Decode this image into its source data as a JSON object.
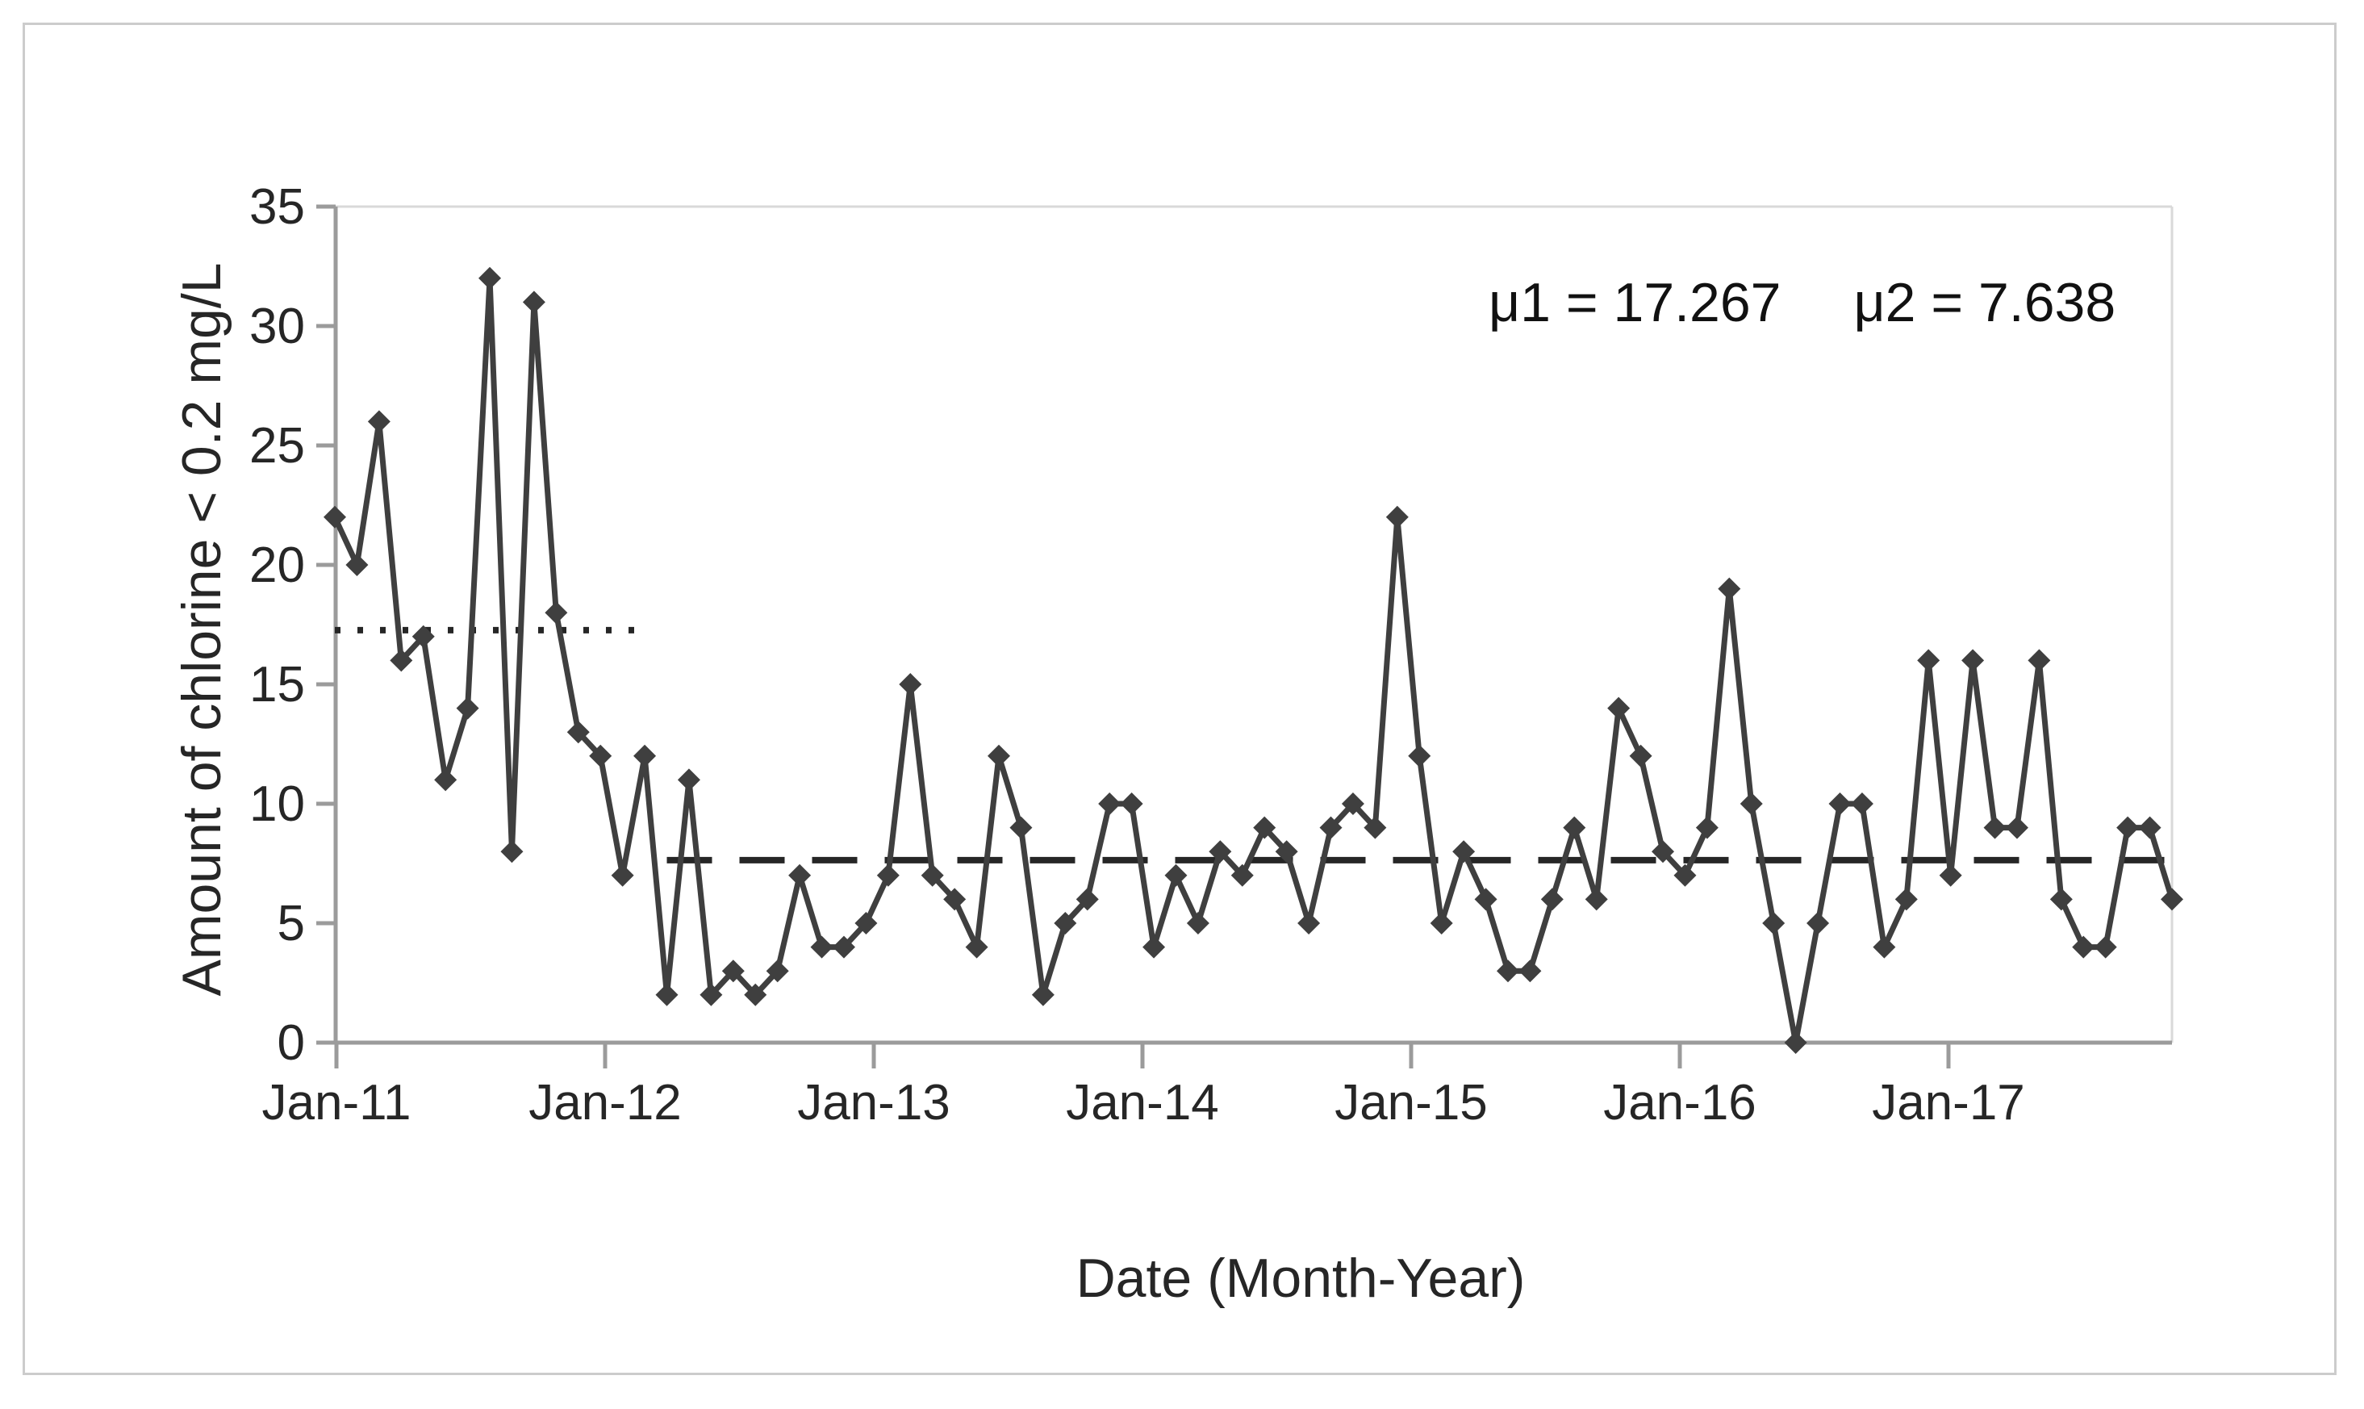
{
  "figure": {
    "y_axis_title": "Amount of chlorine < 0.2 mg/L",
    "x_axis_title": "Date (Month-Year)",
    "annotation_mu1": "μ1 = 17.267",
    "annotation_mu2": "μ2 = 7.638"
  },
  "chart_data": {
    "type": "line",
    "title": "",
    "xlabel": "Date (Month-Year)",
    "ylabel": "Amount of chlorine < 0.2 mg/L",
    "ylim": [
      0,
      35
    ],
    "yticks": [
      0,
      5,
      10,
      15,
      20,
      25,
      30,
      35
    ],
    "x_tick_labels": [
      "Jan-11",
      "Jan-12",
      "Jan-13",
      "Jan-14",
      "Jan-15",
      "Jan-16",
      "Jan-17"
    ],
    "grid": false,
    "legend": false,
    "marker": "diamond",
    "x": [
      "Jan-11",
      "Feb-11",
      "Mar-11",
      "Apr-11",
      "May-11",
      "Jun-11",
      "Jul-11",
      "Aug-11",
      "Sep-11",
      "Oct-11",
      "Nov-11",
      "Dec-11",
      "Jan-12",
      "Feb-12",
      "Mar-12",
      "Apr-12",
      "May-12",
      "Jun-12",
      "Jul-12",
      "Aug-12",
      "Sep-12",
      "Oct-12",
      "Nov-12",
      "Dec-12",
      "Jan-13",
      "Feb-13",
      "Mar-13",
      "Apr-13",
      "May-13",
      "Jun-13",
      "Jul-13",
      "Aug-13",
      "Sep-13",
      "Oct-13",
      "Nov-13",
      "Dec-13",
      "Jan-14",
      "Feb-14",
      "Mar-14",
      "Apr-14",
      "May-14",
      "Jun-14",
      "Jul-14",
      "Aug-14",
      "Sep-14",
      "Oct-14",
      "Nov-14",
      "Dec-14",
      "Jan-15",
      "Feb-15",
      "Mar-15",
      "Apr-15",
      "May-15",
      "Jun-15",
      "Jul-15",
      "Aug-15",
      "Sep-15",
      "Oct-15",
      "Nov-15",
      "Dec-15",
      "Jan-16",
      "Feb-16",
      "Mar-16",
      "Apr-16",
      "May-16",
      "Jun-16",
      "Jul-16",
      "Aug-16",
      "Sep-16",
      "Oct-16",
      "Nov-16",
      "Dec-16",
      "Jan-17",
      "Feb-17",
      "Mar-17",
      "Apr-17",
      "May-17",
      "Jun-17",
      "Jul-17",
      "Aug-17",
      "Sep-17",
      "Oct-17",
      "Nov-17",
      "Dec-17"
    ],
    "values": [
      22,
      20,
      26,
      16,
      17,
      11,
      14,
      32,
      8,
      31,
      18,
      13,
      12,
      7,
      12,
      2,
      11,
      2,
      3,
      2,
      3,
      7,
      4,
      4,
      5,
      7,
      15,
      7,
      6,
      4,
      12,
      9,
      2,
      5,
      6,
      10,
      10,
      4,
      7,
      5,
      8,
      7,
      9,
      8,
      5,
      9,
      10,
      9,
      22,
      12,
      5,
      8,
      6,
      3,
      3,
      6,
      9,
      6,
      14,
      12,
      8,
      7,
      9,
      19,
      10,
      5,
      0,
      5,
      10,
      10,
      4,
      6,
      16,
      7,
      16,
      9,
      9,
      16,
      6,
      4,
      4,
      9,
      9,
      6
    ],
    "reference_lines": [
      {
        "name": "mu1",
        "value": 17.267,
        "style": "dotted",
        "start_month": "Jan-11",
        "end_month": "Mar-12"
      },
      {
        "name": "mu2",
        "value": 7.638,
        "style": "dashed",
        "start_month": "Apr-12",
        "end_month": "Dec-17"
      }
    ],
    "annotations": [
      "μ1 = 17.267",
      "μ2 = 7.638"
    ],
    "colors": {
      "line": "#3f3f3f",
      "marker": "#3f3f3f",
      "reference": "#262626",
      "axis": "#9b9b9b",
      "boundary": "#d9d9d9",
      "text": "#262626",
      "frame": "#cccccc"
    }
  }
}
